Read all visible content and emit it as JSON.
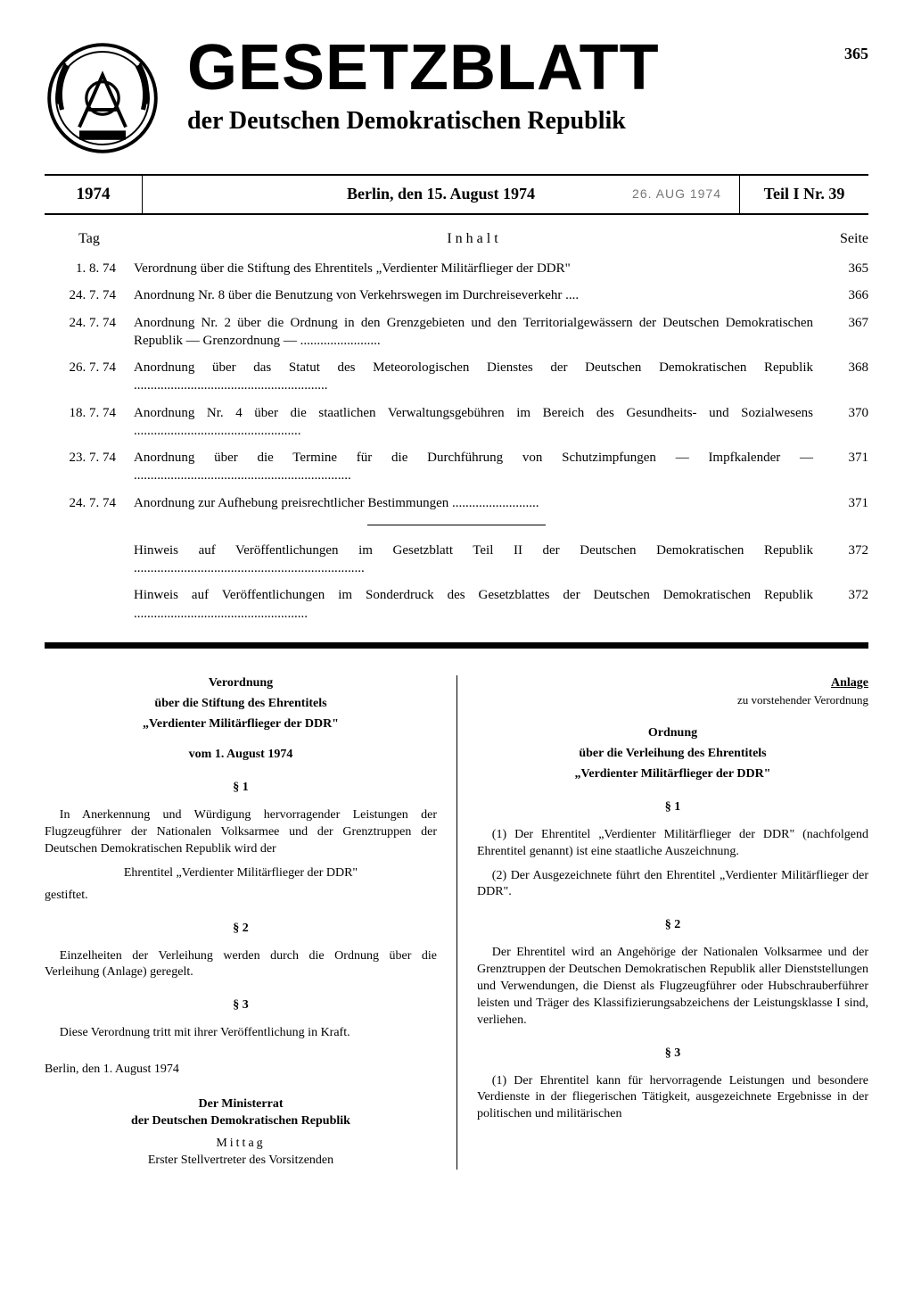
{
  "page_number": "365",
  "masthead": {
    "title": "GESETZBLATT",
    "subtitle": "der Deutschen Demokratischen Republik"
  },
  "issue": {
    "year": "1974",
    "date_place": "Berlin, den 15. August 1974",
    "stamp": "26. AUG 1974",
    "part": "Teil I Nr. 39"
  },
  "toc": {
    "header_tag": "Tag",
    "header_inhalt": "Inhalt",
    "header_seite": "Seite",
    "items": [
      {
        "date": "1. 8. 74",
        "title": "Verordnung über die Stiftung des Ehrentitels „Verdienter Militärflieger der DDR\"",
        "page": "365"
      },
      {
        "date": "24. 7. 74",
        "title": "Anordnung Nr. 8 über die Benutzung von Verkehrswegen im Durchreiseverkehr ....",
        "page": "366"
      },
      {
        "date": "24. 7. 74",
        "title": "Anordnung Nr. 2 über die Ordnung in den Grenzgebieten und den Territorialgewässern der Deutschen Demokratischen Republik — Grenzordnung — ........................",
        "page": "367"
      },
      {
        "date": "26. 7. 74",
        "title": "Anordnung über das Statut des Meteorologischen Dienstes der Deutschen Demokratischen Republik ..........................................................",
        "page": "368"
      },
      {
        "date": "18. 7. 74",
        "title": "Anordnung Nr. 4 über die staatlichen Verwaltungsgebühren im Bereich des Gesundheits- und Sozialwesens ..................................................",
        "page": "370"
      },
      {
        "date": "23. 7. 74",
        "title": "Anordnung über die Termine für die Durchführung von Schutzimpfungen — Impfkalender — .................................................................",
        "page": "371"
      },
      {
        "date": "24. 7. 74",
        "title": "Anordnung zur Aufhebung preisrechtlicher Bestimmungen ..........................",
        "page": "371"
      }
    ],
    "refs": [
      {
        "title": "Hinweis auf Veröffentlichungen im Gesetzblatt Teil II der Deutschen Demokratischen Republik .....................................................................",
        "page": "372"
      },
      {
        "title": "Hinweis auf Veröffentlichungen im Sonderdruck des Gesetzblattes der Deutschen Demokratischen Republik ....................................................",
        "page": "372"
      }
    ]
  },
  "left": {
    "t1": "Verordnung",
    "t2": "über die Stiftung des Ehrentitels",
    "t3": "„Verdienter Militärflieger der DDR\"",
    "date": "vom 1. August 1974",
    "s1": "§ 1",
    "p1": "In Anerkennung und Würdigung hervorragender Leistungen der Flugzeugführer der Nationalen Volksarmee und der Grenztruppen der Deutschen Demokratischen Republik wird der",
    "p1b": "Ehrentitel „Verdienter Militärflieger der DDR\"",
    "p1c": "gestiftet.",
    "s2": "§ 2",
    "p2": "Einzelheiten der Verleihung werden durch die Ordnung über die Verleihung (Anlage) geregelt.",
    "s3": "§ 3",
    "p3": "Diese Verordnung tritt mit ihrer Veröffentlichung in Kraft.",
    "place": "Berlin, den 1. August 1974",
    "sig1": "Der Ministerrat",
    "sig2": "der Deutschen Demokratischen Republik",
    "sig3": "Mittag",
    "sig4": "Erster Stellvertreter des Vorsitzenden"
  },
  "right": {
    "anlage": "Anlage",
    "anlage_sub": "zu vorstehender Verordnung",
    "t1": "Ordnung",
    "t2": "über die Verleihung des Ehrentitels",
    "t3": "„Verdienter Militärflieger der DDR\"",
    "s1": "§ 1",
    "p1": "(1) Der Ehrentitel „Verdienter Militärflieger der DDR\" (nachfolgend Ehrentitel genannt) ist eine staatliche Auszeichnung.",
    "p2": "(2) Der Ausgezeichnete führt den Ehrentitel „Verdienter Militärflieger der DDR\".",
    "s2": "§ 2",
    "p3": "Der Ehrentitel wird an Angehörige der Nationalen Volksarmee und der Grenztruppen der Deutschen Demokratischen Republik aller Dienststellungen und Verwendungen, die Dienst als Flugzeugführer oder Hubschrauberführer leisten und Träger des Klassifizierungsabzeichens der Leistungsklasse I sind, verliehen.",
    "s3": "§ 3",
    "p4": "(1) Der Ehrentitel kann für hervorragende Leistungen und besondere Verdienste in der fliegerischen Tätigkeit, ausgezeichnete Ergebnisse in der politischen und militärischen"
  }
}
